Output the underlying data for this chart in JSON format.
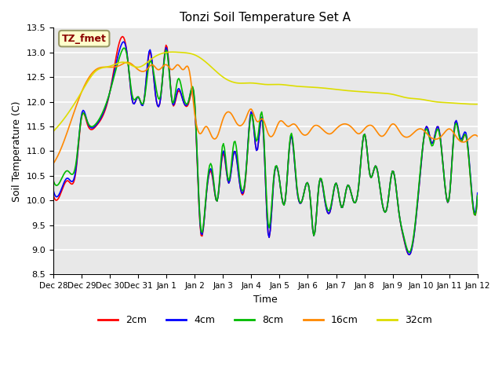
{
  "title": "Tonzi Soil Temperature Set A",
  "xlabel": "Time",
  "ylabel": "Soil Temperature (C)",
  "ylim": [
    8.5,
    13.5
  ],
  "bg_color": "#e8e8e8",
  "fig_bg": "#ffffff",
  "annotation_label": "TZ_fmet",
  "annotation_bg": "#ffffcc",
  "annotation_fg": "#8b0000",
  "series_colors": [
    "#ff0000",
    "#0000ff",
    "#00bb00",
    "#ff8800",
    "#dddd00"
  ],
  "series_labels": [
    "2cm",
    "4cm",
    "8cm",
    "16cm",
    "32cm"
  ],
  "x_tick_labels": [
    "Dec 28",
    "Dec 29",
    "Dec 30",
    "Dec 31",
    "Jan 1",
    "Jan 2",
    "Jan 3",
    "Jan 4",
    "Jan 5",
    "Jan 6",
    "Jan 7",
    "Jan 8",
    "Jan 9",
    "Jan 10",
    "Jan 11",
    "Jan 12"
  ],
  "kp_x_2cm": [
    0,
    0.3,
    0.5,
    0.8,
    1.0,
    1.2,
    1.5,
    2.0,
    2.4,
    2.6,
    2.8,
    3.0,
    3.2,
    3.4,
    3.6,
    3.8,
    4.0,
    4.2,
    4.4,
    4.6,
    4.8,
    5.0,
    5.2,
    5.4,
    5.6,
    5.8,
    6.0,
    6.2,
    6.4,
    6.6,
    6.8,
    7.0,
    7.2,
    7.4,
    7.6,
    7.8,
    8.0,
    8.2,
    8.4,
    8.6,
    8.8,
    9.0,
    9.1,
    9.2,
    9.4,
    9.6,
    9.8,
    10.0,
    10.2,
    10.4,
    10.6,
    10.8,
    11.0,
    11.2,
    11.4,
    11.6,
    11.8,
    12.0,
    12.2,
    12.4,
    12.6,
    12.8,
    13.0,
    13.2,
    13.4,
    13.6,
    13.8,
    14.0,
    14.2,
    14.4,
    14.6,
    14.8,
    15.0
  ],
  "kp_y_2cm": [
    10.1,
    10.2,
    10.4,
    10.6,
    11.7,
    11.55,
    11.5,
    12.2,
    13.3,
    13.0,
    12.0,
    12.1,
    12.0,
    13.0,
    12.2,
    12.1,
    13.15,
    12.0,
    12.2,
    12.0,
    12.0,
    11.9,
    9.4,
    10.05,
    10.55,
    10.0,
    10.95,
    10.35,
    11.0,
    10.3,
    10.45,
    11.8,
    11.0,
    11.6,
    9.3,
    10.45,
    10.4,
    10.0,
    11.3,
    10.3,
    10.0,
    10.35,
    9.95,
    9.3,
    10.35,
    10.0,
    9.8,
    10.35,
    9.85,
    10.3,
    10.0,
    10.3,
    11.35,
    10.5,
    10.7,
    10.05,
    9.85,
    10.6,
    9.85,
    9.2,
    8.9,
    9.5,
    10.7,
    11.5,
    11.15,
    11.5,
    10.6,
    10.05,
    11.55,
    11.2,
    11.3,
    10.1,
    10.1
  ],
  "kp_x_4cm": [
    0,
    0.3,
    0.5,
    0.8,
    1.0,
    1.2,
    1.5,
    2.0,
    2.4,
    2.6,
    2.8,
    3.0,
    3.2,
    3.4,
    3.6,
    3.8,
    4.0,
    4.2,
    4.4,
    4.6,
    4.8,
    5.0,
    5.2,
    5.4,
    5.6,
    5.8,
    6.0,
    6.2,
    6.4,
    6.6,
    6.8,
    7.0,
    7.2,
    7.4,
    7.6,
    7.8,
    8.0,
    8.2,
    8.4,
    8.6,
    8.8,
    9.0,
    9.1,
    9.2,
    9.4,
    9.6,
    9.8,
    10.0,
    10.2,
    10.4,
    10.6,
    10.8,
    11.0,
    11.2,
    11.4,
    11.6,
    11.8,
    12.0,
    12.2,
    12.4,
    12.6,
    12.8,
    13.0,
    13.2,
    13.4,
    13.6,
    13.8,
    14.0,
    14.2,
    14.4,
    14.6,
    14.8,
    15.0
  ],
  "kp_y_4cm": [
    10.2,
    10.25,
    10.45,
    10.65,
    11.75,
    11.6,
    11.52,
    12.2,
    13.15,
    13.0,
    12.0,
    12.1,
    12.0,
    13.05,
    12.2,
    12.1,
    13.1,
    12.0,
    12.25,
    12.0,
    12.05,
    11.95,
    9.45,
    10.05,
    10.6,
    10.0,
    11.0,
    10.35,
    11.0,
    10.3,
    10.5,
    11.8,
    11.0,
    11.6,
    9.3,
    10.45,
    10.4,
    10.0,
    11.3,
    10.3,
    10.0,
    10.35,
    9.95,
    9.3,
    10.35,
    10.0,
    9.8,
    10.35,
    9.85,
    10.3,
    10.0,
    10.3,
    11.35,
    10.5,
    10.7,
    10.05,
    9.85,
    10.6,
    9.85,
    9.22,
    8.9,
    9.5,
    10.7,
    11.5,
    11.15,
    11.5,
    10.6,
    10.05,
    11.55,
    11.25,
    11.35,
    10.15,
    10.15
  ],
  "kp_x_8cm": [
    0,
    0.3,
    0.5,
    0.8,
    1.0,
    1.2,
    1.5,
    2.0,
    2.4,
    2.6,
    2.8,
    3.0,
    3.2,
    3.4,
    3.6,
    3.8,
    4.0,
    4.2,
    4.4,
    4.6,
    4.8,
    5.0,
    5.2,
    5.4,
    5.6,
    5.8,
    6.0,
    6.2,
    6.4,
    6.6,
    6.8,
    7.0,
    7.2,
    7.4,
    7.6,
    7.8,
    8.0,
    8.2,
    8.4,
    8.6,
    8.8,
    9.0,
    9.1,
    9.2,
    9.4,
    9.6,
    9.8,
    10.0,
    10.2,
    10.4,
    10.6,
    10.8,
    11.0,
    11.2,
    11.4,
    11.6,
    11.8,
    12.0,
    12.2,
    12.4,
    12.6,
    12.8,
    13.0,
    13.2,
    13.4,
    13.6,
    13.8,
    14.0,
    14.2,
    14.4,
    14.6,
    14.8,
    15.0
  ],
  "kp_y_8cm": [
    10.4,
    10.45,
    10.6,
    10.75,
    11.7,
    11.6,
    11.55,
    12.2,
    13.0,
    12.95,
    12.1,
    12.1,
    12.0,
    12.8,
    12.4,
    12.15,
    13.05,
    12.0,
    12.45,
    12.1,
    12.05,
    12.0,
    9.5,
    10.1,
    10.7,
    10.0,
    11.15,
    10.4,
    11.2,
    10.4,
    10.5,
    11.75,
    11.2,
    11.7,
    9.5,
    10.5,
    10.4,
    10.0,
    11.35,
    10.35,
    10.0,
    10.35,
    9.95,
    9.3,
    10.35,
    10.05,
    9.85,
    10.35,
    9.85,
    10.3,
    10.0,
    10.3,
    11.35,
    10.5,
    10.7,
    10.05,
    9.85,
    10.6,
    9.85,
    9.25,
    8.95,
    9.55,
    10.75,
    11.45,
    11.1,
    11.45,
    10.6,
    10.05,
    11.5,
    11.2,
    11.3,
    10.1,
    10.1
  ],
  "kp_x_16cm": [
    0,
    0.5,
    1.0,
    1.5,
    2.0,
    2.4,
    2.6,
    2.8,
    3.0,
    3.3,
    3.5,
    3.7,
    4.0,
    4.2,
    4.4,
    4.6,
    4.8,
    5.0,
    5.2,
    5.4,
    5.6,
    5.8,
    6.0,
    6.3,
    6.5,
    6.8,
    7.0,
    7.2,
    7.4,
    7.6,
    7.8,
    8.0,
    8.3,
    8.5,
    8.8,
    9.0,
    9.2,
    9.5,
    9.8,
    10.0,
    10.3,
    10.6,
    10.8,
    11.0,
    11.3,
    11.6,
    11.8,
    12.0,
    12.3,
    12.6,
    12.8,
    13.0,
    13.3,
    13.6,
    13.8,
    14.0,
    14.3,
    14.6,
    14.8,
    15.0
  ],
  "kp_y_16cm": [
    10.75,
    11.4,
    12.2,
    12.65,
    12.7,
    12.75,
    12.8,
    12.75,
    12.65,
    12.65,
    12.75,
    12.65,
    12.75,
    12.65,
    12.75,
    12.65,
    12.65,
    11.75,
    11.35,
    11.5,
    11.3,
    11.3,
    11.65,
    11.75,
    11.55,
    11.65,
    11.85,
    11.6,
    11.65,
    11.35,
    11.35,
    11.6,
    11.5,
    11.55,
    11.35,
    11.35,
    11.5,
    11.45,
    11.35,
    11.45,
    11.55,
    11.45,
    11.35,
    11.45,
    11.5,
    11.3,
    11.4,
    11.55,
    11.35,
    11.3,
    11.4,
    11.45,
    11.3,
    11.25,
    11.35,
    11.45,
    11.25,
    11.2,
    11.3,
    11.3
  ],
  "kp_x_32cm": [
    0,
    0.5,
    1.0,
    1.5,
    2.0,
    2.5,
    3.0,
    3.5,
    4.0,
    4.5,
    5.0,
    5.5,
    6.0,
    6.5,
    7.0,
    7.5,
    8.0,
    8.5,
    9.0,
    9.5,
    10.0,
    10.5,
    11.0,
    11.5,
    12.0,
    12.5,
    13.0,
    13.5,
    14.0,
    14.5,
    15.0
  ],
  "kp_y_32cm": [
    11.4,
    11.75,
    12.2,
    12.62,
    12.72,
    12.8,
    12.7,
    12.88,
    13.0,
    13.0,
    12.95,
    12.75,
    12.5,
    12.38,
    12.38,
    12.35,
    12.35,
    12.32,
    12.3,
    12.28,
    12.25,
    12.22,
    12.2,
    12.18,
    12.15,
    12.08,
    12.05,
    12.0,
    11.98,
    11.96,
    11.95
  ]
}
